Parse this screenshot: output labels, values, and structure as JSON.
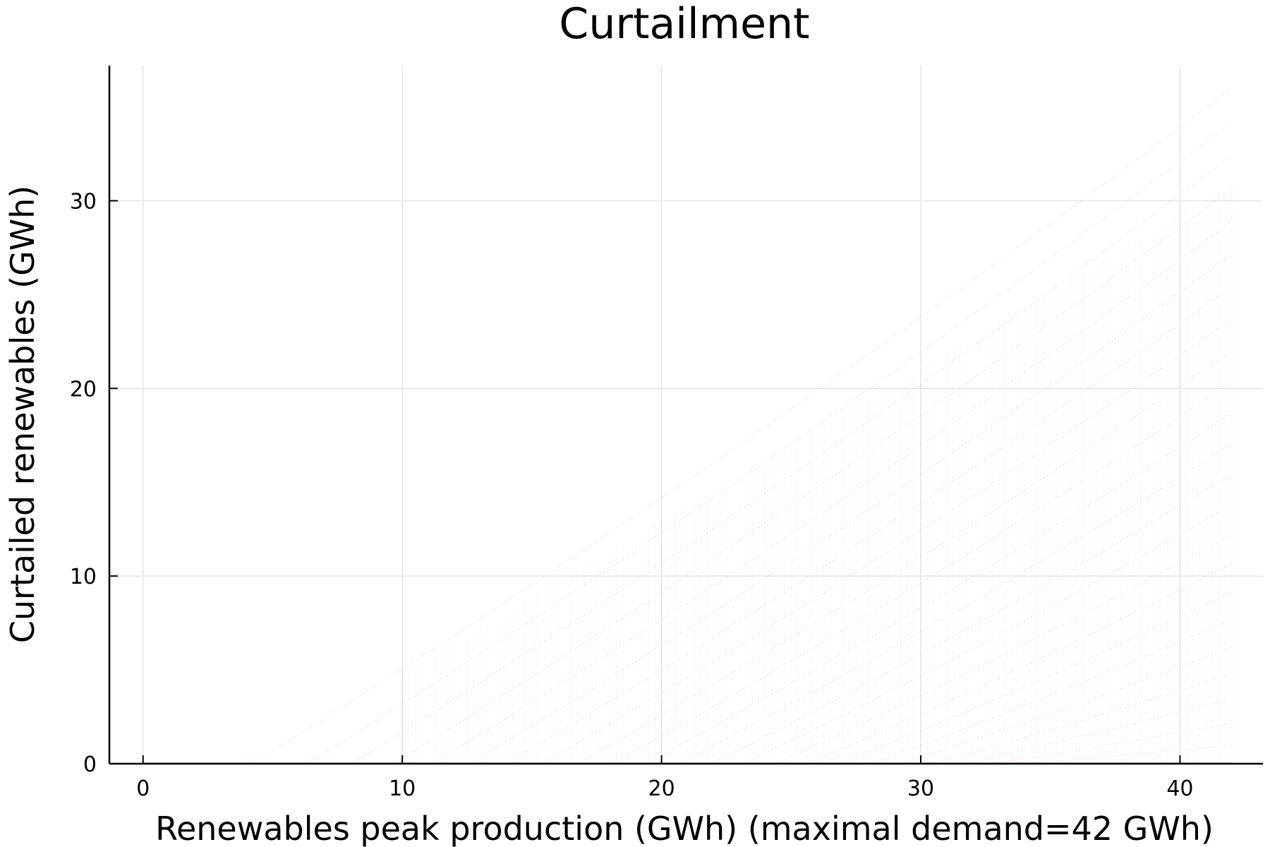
{
  "chart_data": {
    "type": "scatter",
    "title": "Curtailment",
    "xlabel": "Renewables peak production (GWh) (maximal demand=42 GWh)",
    "ylabel": "Curtailed renewables (GWh)",
    "xlim": [
      -1.3,
      43.2
    ],
    "ylim": [
      0,
      37.2
    ],
    "xticks": [
      0,
      10,
      20,
      30,
      40
    ],
    "yticks": [
      0,
      10,
      20,
      30
    ],
    "grid": true,
    "legend": "none",
    "series_color": "#e26f8a",
    "x_max": 42,
    "series_description_unprinted": "",
    "families": {
      "count": 24,
      "onset_min": 4.2,
      "onset_max": 35,
      "top_at_x42_max": 36
    }
  }
}
